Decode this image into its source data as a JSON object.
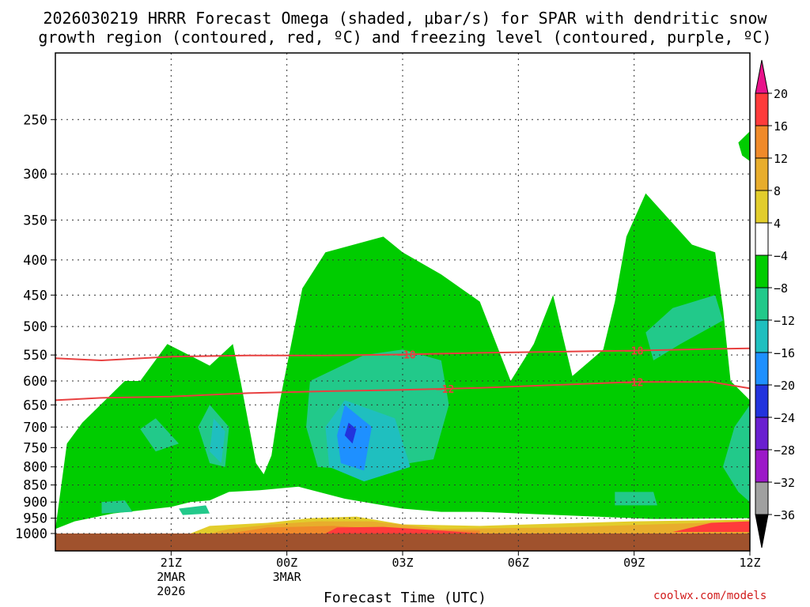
{
  "chart_data": {
    "type": "contour",
    "title_line1": "2026030219 HRRR Forecast Omega (shaded, μbar/s) for SPAR with dendritic snow",
    "title_line2": "growth region (contoured, red, ºC) and freezing level (contoured, purple, ºC)",
    "xlabel": "Forecast Time (UTC)",
    "credit": "coolwx.com/models",
    "y_axis": {
      "label": "",
      "scale": "log-pressure",
      "reversed": true,
      "ylim": [
        1000,
        200
      ],
      "ticks": [
        250,
        300,
        350,
        400,
        450,
        500,
        550,
        600,
        650,
        700,
        750,
        800,
        850,
        900,
        950,
        1000
      ]
    },
    "x_axis": {
      "xlim": [
        -3,
        15
      ],
      "ticks": [
        {
          "hour": 0,
          "label": "21Z",
          "sub1": "2MAR",
          "sub2": "2026"
        },
        {
          "hour": 3,
          "label": "00Z",
          "sub1": "3MAR",
          "sub2": ""
        },
        {
          "hour": 6,
          "label": "03Z",
          "sub1": "",
          "sub2": ""
        },
        {
          "hour": 9,
          "label": "06Z",
          "sub1": "",
          "sub2": ""
        },
        {
          "hour": 12,
          "label": "09Z",
          "sub1": "",
          "sub2": ""
        },
        {
          "hour": 15,
          "label": "12Z",
          "sub1": "",
          "sub2": ""
        }
      ]
    },
    "grid": true,
    "colorbar": {
      "position": "right",
      "levels": [
        {
          "label": "20",
          "color": "#ff3b3b"
        },
        {
          "label": "16",
          "color": "#f08a2a"
        },
        {
          "label": "12",
          "color": "#e8ad2c"
        },
        {
          "label": "8",
          "color": "#e2cd2c"
        },
        {
          "label": "4",
          "color": "#ffffff"
        },
        {
          "label": "−4",
          "color": "#00cc00"
        },
        {
          "label": "−8",
          "color": "#22c98a"
        },
        {
          "label": "−12",
          "color": "#1fbfbf"
        },
        {
          "label": "−16",
          "color": "#1e90ff"
        },
        {
          "label": "−20",
          "color": "#2233dd"
        },
        {
          "label": "−24",
          "color": "#6a1fd0"
        },
        {
          "label": "−28",
          "color": "#9c18c8"
        },
        {
          "label": "−32",
          "color": "#a0a0a0"
        },
        {
          "label": "−36",
          "color": "#000000"
        }
      ],
      "top_arrow_color": "#e8138a",
      "bottom_arrow_color": "#000000"
    },
    "contours": [
      {
        "name": "dendritic",
        "label": "−18",
        "color": "#e84040",
        "points": [
          [
            -3,
            556
          ],
          [
            -1.8,
            560
          ],
          [
            0,
            553
          ],
          [
            2,
            551
          ],
          [
            4,
            551
          ],
          [
            6,
            549
          ],
          [
            8,
            546
          ],
          [
            10,
            544
          ],
          [
            12,
            542
          ],
          [
            14,
            539
          ],
          [
            15,
            538
          ]
        ],
        "label_hours": [
          6.1,
          12
        ]
      },
      {
        "name": "dendritic",
        "label": "−12",
        "color": "#e84040",
        "points": [
          [
            -3,
            640
          ],
          [
            -1.8,
            635
          ],
          [
            0,
            632
          ],
          [
            2,
            625
          ],
          [
            4,
            621
          ],
          [
            6,
            618
          ],
          [
            8,
            614
          ],
          [
            10,
            608
          ],
          [
            12,
            602
          ],
          [
            14,
            602
          ],
          [
            15,
            615
          ]
        ],
        "label_hours": [
          7.1,
          12
        ]
      }
    ],
    "omega_regions": [
      {
        "level": "4",
        "points": [
          [
            -1.8,
            550
          ],
          [
            -1.7,
            600
          ],
          [
            -1.6,
            602
          ],
          [
            -1.2,
            560
          ],
          [
            -1.4,
            510
          ],
          [
            -1.6,
            505
          ]
        ]
      },
      {
        "level": "4",
        "points": [
          [
            1.4,
            205
          ],
          [
            2.3,
            200
          ],
          [
            2.6,
            250
          ],
          [
            2.5,
            320
          ],
          [
            2.2,
            400
          ],
          [
            2.0,
            640
          ],
          [
            1.6,
            400
          ],
          [
            1.3,
            330
          ],
          [
            1.4,
            240
          ]
        ]
      },
      {
        "level": "4",
        "points": [
          [
            8.8,
            255
          ],
          [
            9.2,
            255
          ],
          [
            9.5,
            320
          ],
          [
            9.3,
            370
          ],
          [
            8.7,
            330
          ],
          [
            8.6,
            290
          ]
        ]
      },
      {
        "level": "-4",
        "points": [
          [
            -3,
            985
          ],
          [
            -2.7,
            740
          ],
          [
            -2.3,
            690
          ],
          [
            -1.2,
            600
          ],
          [
            -0.8,
            600
          ],
          [
            -0.1,
            530
          ],
          [
            1.0,
            570
          ],
          [
            1.6,
            530
          ],
          [
            1.8,
            600
          ],
          [
            2.2,
            790
          ],
          [
            2.4,
            820
          ],
          [
            2.6,
            770
          ],
          [
            2.8,
            650
          ],
          [
            3.0,
            570
          ],
          [
            3.4,
            440
          ],
          [
            4.0,
            390
          ],
          [
            5.5,
            370
          ],
          [
            6.0,
            390
          ],
          [
            7.0,
            420
          ],
          [
            8.0,
            460
          ],
          [
            8.8,
            600
          ],
          [
            9.4,
            530
          ],
          [
            9.9,
            450
          ],
          [
            10.2,
            530
          ],
          [
            10.4,
            590
          ],
          [
            11.2,
            540
          ],
          [
            11.5,
            460
          ],
          [
            11.8,
            370
          ],
          [
            12.3,
            320
          ],
          [
            13.5,
            380
          ],
          [
            14.1,
            390
          ],
          [
            14.3,
            470
          ],
          [
            14.5,
            600
          ],
          [
            15,
            640
          ],
          [
            15,
            965
          ],
          [
            13,
            955
          ],
          [
            10,
            940
          ],
          [
            8,
            930
          ],
          [
            7,
            930
          ],
          [
            6,
            920
          ],
          [
            4.5,
            890
          ],
          [
            3.3,
            855
          ],
          [
            2.3,
            865
          ],
          [
            1.5,
            870
          ],
          [
            1.0,
            895
          ],
          [
            0.5,
            900
          ],
          [
            0.0,
            915
          ],
          [
            -1.5,
            935
          ],
          [
            -2.5,
            960
          ]
        ]
      },
      {
        "level": "-4",
        "points": [
          [
            14.7,
            270
          ],
          [
            15.0,
            260
          ],
          [
            15.3,
            265
          ],
          [
            15.4,
            280
          ],
          [
            15.1,
            290
          ],
          [
            14.8,
            282
          ]
        ]
      },
      {
        "level": "-8",
        "points": [
          [
            5.0,
            550
          ],
          [
            6.0,
            540
          ],
          [
            7.0,
            560
          ],
          [
            7.2,
            650
          ],
          [
            6.8,
            780
          ],
          [
            5.0,
            810
          ],
          [
            3.8,
            800
          ],
          [
            3.5,
            700
          ],
          [
            3.6,
            600
          ]
        ]
      },
      {
        "level": "-8",
        "points": [
          [
            1.0,
            650
          ],
          [
            1.5,
            700
          ],
          [
            1.4,
            800
          ],
          [
            1.0,
            790
          ],
          [
            0.7,
            700
          ]
        ]
      },
      {
        "level": "-8",
        "points": [
          [
            -0.4,
            680
          ],
          [
            0.2,
            740
          ],
          [
            -0.4,
            760
          ],
          [
            -0.8,
            705
          ]
        ]
      },
      {
        "level": "-8",
        "points": [
          [
            12.3,
            510
          ],
          [
            13.0,
            470
          ],
          [
            14.1,
            450
          ],
          [
            14.3,
            490
          ],
          [
            13.2,
            530
          ],
          [
            12.5,
            560
          ]
        ]
      },
      {
        "level": "-8",
        "points": [
          [
            14.6,
            700
          ],
          [
            15,
            650
          ],
          [
            15,
            900
          ],
          [
            14.7,
            870
          ],
          [
            14.3,
            800
          ]
        ]
      },
      {
        "level": "-8",
        "points": [
          [
            -1.8,
            900
          ],
          [
            -1.2,
            895
          ],
          [
            -1.0,
            930
          ],
          [
            -1.8,
            935
          ]
        ]
      },
      {
        "level": "-8",
        "points": [
          [
            0.2,
            920
          ],
          [
            0.9,
            910
          ],
          [
            1.0,
            935
          ],
          [
            0.3,
            940
          ]
        ]
      },
      {
        "level": "-8",
        "points": [
          [
            11.5,
            870
          ],
          [
            12.5,
            870
          ],
          [
            12.6,
            910
          ],
          [
            11.5,
            910
          ]
        ]
      },
      {
        "level": "-12",
        "points": [
          [
            4.5,
            640
          ],
          [
            5.8,
            680
          ],
          [
            6.2,
            800
          ],
          [
            5.0,
            840
          ],
          [
            4.1,
            800
          ],
          [
            4.0,
            700
          ]
        ]
      },
      {
        "level": "-12",
        "points": [
          [
            1.1,
            680
          ],
          [
            1.4,
            710
          ],
          [
            1.3,
            790
          ],
          [
            1.0,
            760
          ]
        ]
      },
      {
        "level": "-16",
        "points": [
          [
            4.5,
            650
          ],
          [
            5.2,
            700
          ],
          [
            5.0,
            810
          ],
          [
            4.4,
            790
          ],
          [
            4.3,
            720
          ]
        ]
      },
      {
        "level": "-20",
        "points": [
          [
            4.6,
            690
          ],
          [
            4.8,
            705
          ],
          [
            4.7,
            740
          ],
          [
            4.5,
            720
          ]
        ]
      },
      {
        "level": "4",
        "points": [
          [
            -3,
            1000
          ],
          [
            15,
            1000
          ],
          [
            15,
            950
          ],
          [
            10,
            955
          ],
          [
            6,
            960
          ],
          [
            4.5,
            935
          ],
          [
            3,
            955
          ],
          [
            1,
            965
          ],
          [
            0.5,
            985
          ]
        ]
      },
      {
        "level": "8",
        "points": [
          [
            0.5,
            1000
          ],
          [
            15,
            1000
          ],
          [
            15,
            955
          ],
          [
            12,
            960
          ],
          [
            8,
            975
          ],
          [
            6,
            970
          ],
          [
            4.8,
            945
          ],
          [
            3.6,
            950
          ],
          [
            2.5,
            965
          ],
          [
            1.0,
            975
          ]
        ]
      },
      {
        "level": "12",
        "points": [
          [
            1.0,
            1000
          ],
          [
            15,
            1000
          ],
          [
            15,
            960
          ],
          [
            10,
            980
          ],
          [
            7,
            985
          ],
          [
            5.2,
            960
          ],
          [
            3.8,
            960
          ],
          [
            2.6,
            970
          ],
          [
            1.5,
            985
          ]
        ]
      },
      {
        "level": "16",
        "points": [
          [
            1.5,
            1000
          ],
          [
            8,
            1000
          ],
          [
            8,
            990
          ],
          [
            6,
            988
          ],
          [
            4.2,
            975
          ],
          [
            2.5,
            980
          ]
        ]
      },
      {
        "level": "20",
        "points": [
          [
            4.0,
            1000
          ],
          [
            8,
            1000
          ],
          [
            7,
            990
          ],
          [
            5.5,
            978
          ],
          [
            4.3,
            980
          ]
        ]
      },
      {
        "level": "20",
        "points": [
          [
            13,
            995
          ],
          [
            15,
            995
          ],
          [
            15,
            960
          ],
          [
            14,
            965
          ]
        ]
      }
    ],
    "ground": {
      "color": "#a0522d",
      "from_pressure": 1000
    }
  }
}
